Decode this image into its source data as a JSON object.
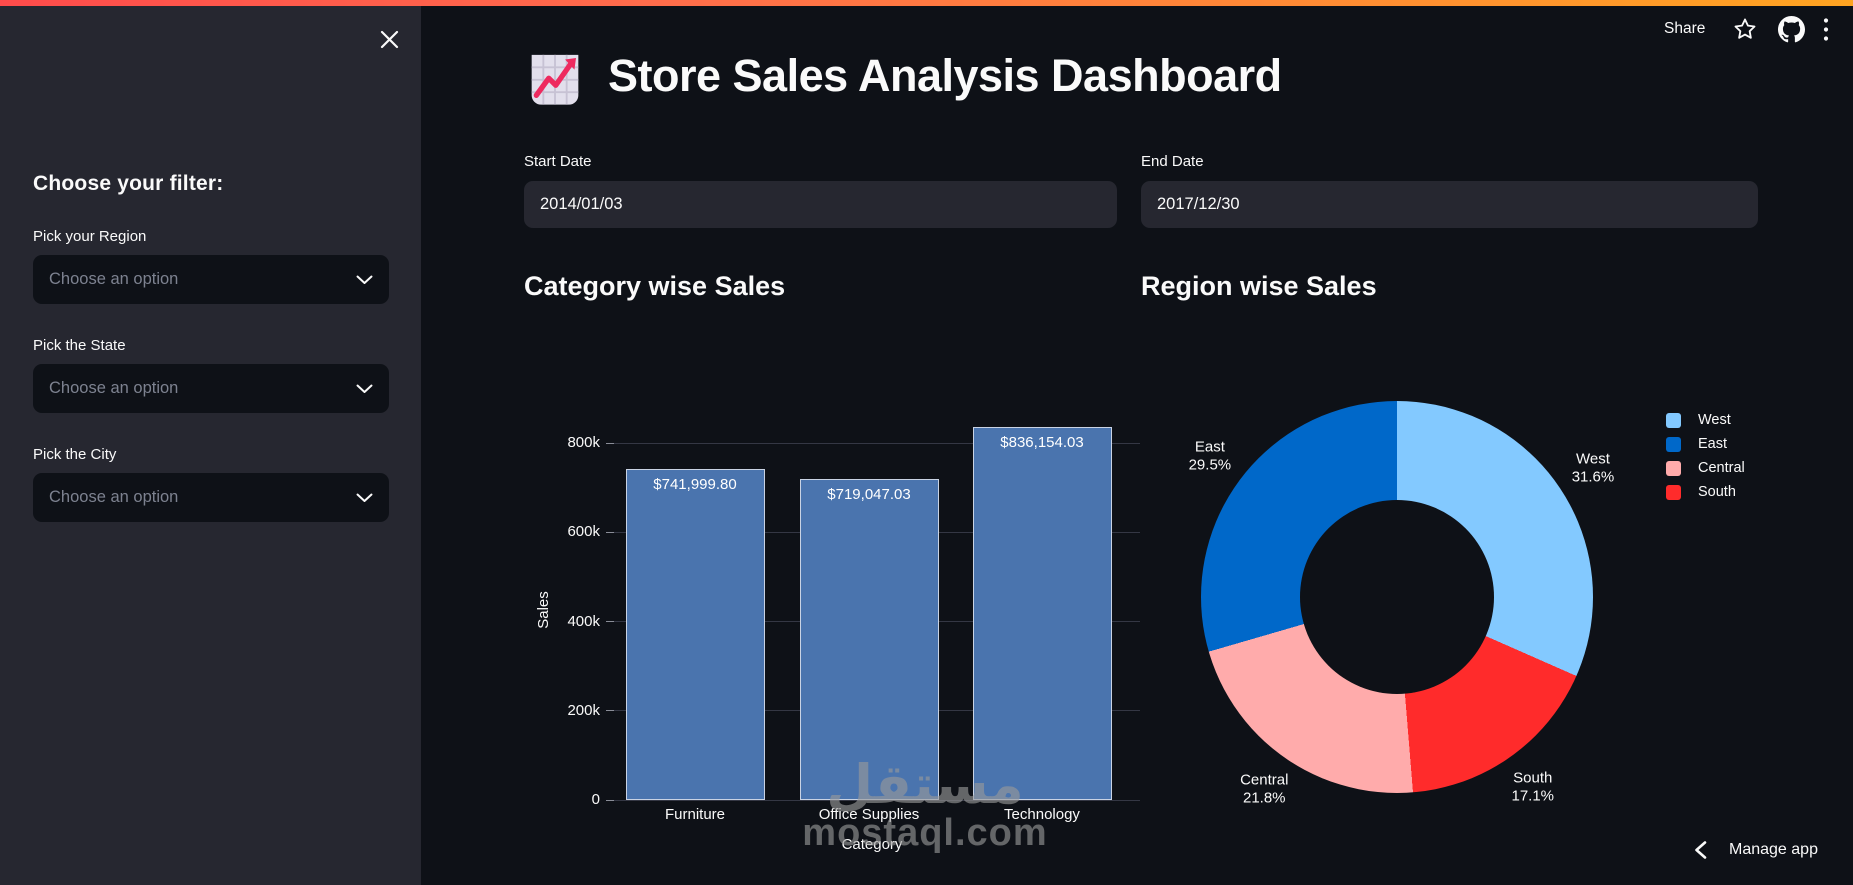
{
  "app": {
    "decoration_colors": [
      "#ff4b4b",
      "#ffa421"
    ],
    "background": "#0e1117",
    "sidebar_background": "#262730"
  },
  "header": {
    "share_label": "Share",
    "icons": [
      "star-icon",
      "github-icon",
      "kebab-menu-icon"
    ]
  },
  "sidebar": {
    "close_icon": "close-icon",
    "heading": "Choose your filter:",
    "filters": [
      {
        "label": "Pick your Region",
        "placeholder": "Choose an option"
      },
      {
        "label": "Pick the State",
        "placeholder": "Choose an option"
      },
      {
        "label": "Pick the City",
        "placeholder": "Choose an option"
      }
    ]
  },
  "main": {
    "title": "Store Sales Analysis Dashboard",
    "title_icon": "chart-increasing-icon",
    "date_inputs": [
      {
        "label": "Start Date",
        "value": "2014/01/03"
      },
      {
        "label": "End Date",
        "value": "2017/12/30"
      }
    ]
  },
  "chart_data": [
    {
      "type": "bar",
      "title": "Category wise Sales",
      "categories": [
        "Furniture",
        "Office Supplies",
        "Technology"
      ],
      "values": [
        741999.8,
        719047.03,
        836154.03
      ],
      "value_labels": [
        "$741,999.80",
        "$719,047.03",
        "$836,154.03"
      ],
      "xlabel": "Category",
      "ylabel": "Sales",
      "ylim": [
        0,
        870000
      ],
      "yticks": [
        {
          "value": 0,
          "label": "0"
        },
        {
          "value": 200000,
          "label": "200k"
        },
        {
          "value": 400000,
          "label": "400k"
        },
        {
          "value": 600000,
          "label": "600k"
        },
        {
          "value": 800000,
          "label": "800k"
        }
      ],
      "grid": true,
      "bar_color": "#4a74ae",
      "bar_border_color": "#c9d3e4"
    },
    {
      "type": "pie",
      "title": "Region wise Sales",
      "labels": [
        "West",
        "East",
        "Central",
        "South"
      ],
      "values": [
        31.6,
        29.5,
        21.8,
        17.1
      ],
      "clockwise_from_top": [
        {
          "name": "West",
          "pct": 31.6
        },
        {
          "name": "South",
          "pct": 17.1
        },
        {
          "name": "Central",
          "pct": 21.8
        },
        {
          "name": "East",
          "pct": 29.5
        }
      ],
      "colors": {
        "West": "#83c9ff",
        "East": "#0068c9",
        "Central": "#ffabab",
        "South": "#ff2b2b"
      },
      "hole": 0.5,
      "legend_position": "right"
    }
  ],
  "footer": {
    "manage_app_label": "Manage app"
  },
  "watermark": {
    "line1": "مستقل",
    "line2": "mostaql.com"
  }
}
